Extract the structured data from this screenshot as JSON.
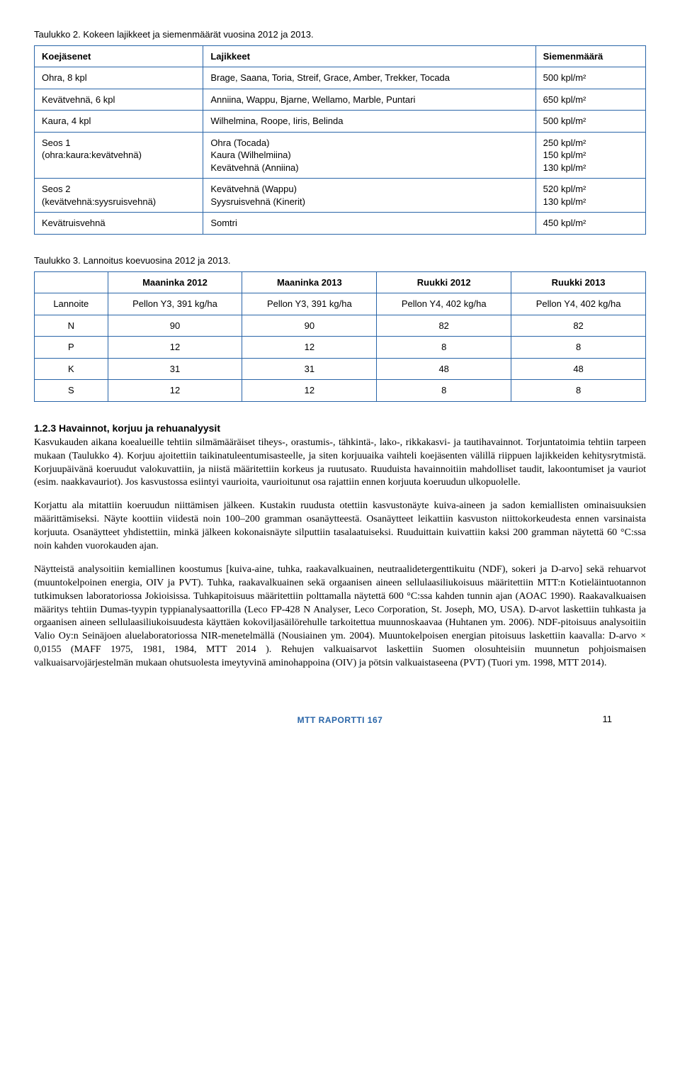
{
  "table1": {
    "caption": "Taulukko 2. Kokeen lajikkeet ja siemenmäärät vuosina 2012 ja 2013.",
    "headers": [
      "Koejäsenet",
      "Lajikkeet",
      "Siemenmäärä"
    ],
    "rows": [
      {
        "c0": "Ohra, 8 kpl",
        "c1": "Brage, Saana, Toria, Streif, Grace, Amber, Trekker, Tocada",
        "c2": "500 kpl/m²"
      },
      {
        "c0": "Kevätvehnä, 6 kpl",
        "c1": "Anniina, Wappu, Bjarne, Wellamo, Marble, Puntari",
        "c2": "650 kpl/m²"
      },
      {
        "c0": "Kaura, 4 kpl",
        "c1": "Wilhelmina, Roope, Iiris, Belinda",
        "c2": "500 kpl/m²"
      },
      {
        "c0_l1": "Seos 1",
        "c0_l2": "(ohra:kaura:kevätvehnä)",
        "c1_l1": "Ohra (Tocada)",
        "c1_l2": "Kaura (Wilhelmiina)",
        "c1_l3": "Kevätvehnä (Anniina)",
        "c2_l1": "250 kpl/m²",
        "c2_l2": "150 kpl/m²",
        "c2_l3": "130 kpl/m²"
      },
      {
        "c0_l1": "Seos 2",
        "c0_l2": "(kevätvehnä:syysruisvehnä)",
        "c1_l1": "Kevätvehnä (Wappu)",
        "c1_l2": "Syysruisvehnä (Kinerit)",
        "c2_l1": "520 kpl/m²",
        "c2_l2": "130 kpl/m²"
      },
      {
        "c0": "Kevätruisvehnä",
        "c1": "Somtri",
        "c2": "450 kpl/m²"
      }
    ]
  },
  "table2": {
    "caption": "Taulukko 3. Lannoitus koevuosina 2012 ja 2013.",
    "headers": [
      "",
      "Maaninka 2012",
      "Maaninka 2013",
      "Ruukki 2012",
      "Ruukki 2013"
    ],
    "rows": [
      [
        "Lannoite",
        "Pellon Y3, 391 kg/ha",
        "Pellon Y3, 391 kg/ha",
        "Pellon Y4, 402 kg/ha",
        "Pellon Y4, 402 kg/ha"
      ],
      [
        "N",
        "90",
        "90",
        "82",
        "82"
      ],
      [
        "P",
        "12",
        "12",
        "8",
        "8"
      ],
      [
        "K",
        "31",
        "31",
        "48",
        "48"
      ],
      [
        "S",
        "12",
        "12",
        "8",
        "8"
      ]
    ]
  },
  "section_title": "1.2.3 Havainnot, korjuu ja rehuanalyysit",
  "p1": "Kasvukauden aikana koealueille tehtiin silmämääräiset tiheys-, orastumis-, tähkintä-, lako-, rikkakasvi- ja tautihavainnot. Torjuntatoimia tehtiin tarpeen mukaan (Taulukko 4). Korjuu ajoitettiin taikinatuleentumisasteelle, ja siten korjuuaika vaihteli koejäsenten välillä riippuen lajikkeiden kehitysrytmistä. Korjuupäivänä koeruudut valokuvattiin, ja niistä määritettiin korkeus ja ruutusato. Ruuduista havainnoitiin mahdolliset taudit, lakoontumiset ja vauriot (esim. naakkavauriot). Jos kasvustossa esiintyi vaurioita, vaurioitunut osa rajattiin ennen korjuuta koeruudun ulkopuolelle.",
  "p2": "Korjattu ala mitattiin koeruudun niittämisen jälkeen. Kustakin ruudusta otettiin kasvustonäyte kuiva-aineen ja sadon kemiallisten ominaisuuksien määrittämiseksi. Näyte koottiin viidestä noin 100–200 gramman osanäytteestä. Osanäytteet leikattiin kasvuston niittokorkeudesta ennen varsinaista korjuuta. Osanäytteet yhdistettiin, minkä jälkeen kokonaisnäyte silputtiin tasalaatuiseksi. Ruuduittain kuivattiin kaksi 200 gramman näytettä 60 °C:ssa noin kahden vuorokauden ajan.",
  "p3": "Näytteistä analysoitiin kemiallinen koostumus [kuiva-aine, tuhka, raakavalkuainen, neutraalidetergenttikuitu (NDF), sokeri ja D-arvo] sekä rehuarvot (muuntokelpoinen energia, OIV ja PVT). Tuhka, raakavalkuainen sekä orgaanisen aineen sellulaasiliukoisuus määritettiin MTT:n Kotieläintuotannon tutkimuksen laboratoriossa Jokioisissa. Tuhkapitoisuus määritettiin polttamalla näytettä 600 °C:ssa kahden tunnin ajan (AOAC 1990). Raakavalkuaisen määritys tehtiin Dumas-tyypin typpianalysaattorilla (Leco FP-428 N Analyser, Leco Corporation, St. Joseph, MO, USA). D-arvot laskettiin tuhkasta ja orgaanisen aineen sellulaasiliukoisuudesta käyttäen kokoviljasäilörehulle tarkoitettua muunnoskaavaa (Huhtanen ym. 2006). NDF-pitoisuus analysoitiin Valio Oy:n Seinäjoen aluelaboratoriossa NIR-menetelmällä (Nousiainen ym. 2004). Muuntokelpoisen energian pitoisuus laskettiin kaavalla: D-arvo × 0,0155 (MAFF 1975, 1981, 1984, MTT 2014 ). Rehujen valkuaisarvot laskettiin Suomen olosuhteisiin muunnetun pohjoismaisen valkuaisarvojärjestelmän mukaan ohutsuolesta imeytyvinä aminohappoina (OIV) ja pötsin valkuaistaseena (PVT) (Tuori ym. 1998, MTT 2014).",
  "footer_brand": "MTT RAPORTTI 167",
  "footer_page": "11"
}
